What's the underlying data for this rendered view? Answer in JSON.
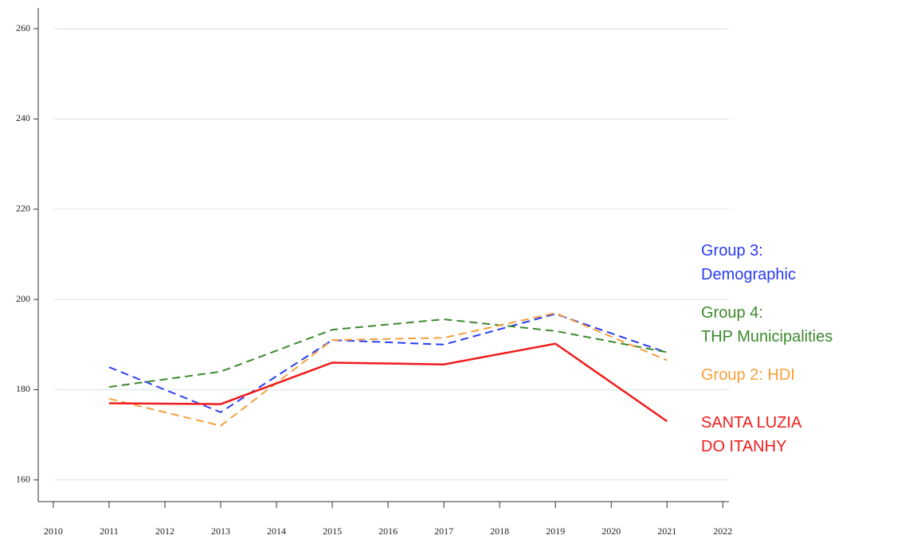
{
  "chart_data": {
    "type": "line",
    "x": [
      2011,
      2013,
      2015,
      2017,
      2019,
      2021
    ],
    "series": [
      {
        "name": "Group 3: Demographic",
        "color": "#2a3cf0",
        "linestyle": "dashed",
        "values": [
          185,
          175,
          191,
          190,
          196.8,
          188.2
        ]
      },
      {
        "name": "Group 4: THP Municipalities",
        "color": "#3c8a2e",
        "linestyle": "dashed",
        "values": [
          180.6,
          184,
          193.3,
          195.6,
          193,
          188.3
        ]
      },
      {
        "name": "Group 2: HDI",
        "color": "#f5a03c",
        "linestyle": "dashed",
        "values": [
          178,
          172,
          191,
          191.5,
          197,
          186.5
        ]
      },
      {
        "name": "SANTA LUZIA DO ITANHY",
        "color": "#f01c1c",
        "linestyle": "solid",
        "values": [
          177,
          176.8,
          186,
          185.6,
          190.2,
          173
        ]
      }
    ],
    "xlim": [
      2009.73,
      2022.11
    ],
    "xticks": [
      2010,
      2011,
      2012,
      2013,
      2014,
      2015,
      2016,
      2017,
      2018,
      2019,
      2020,
      2021,
      2022
    ],
    "ylim": [
      155.2,
      264.6
    ],
    "yticks": [
      160,
      180,
      200,
      220,
      240,
      260
    ],
    "grid": true
  }
}
